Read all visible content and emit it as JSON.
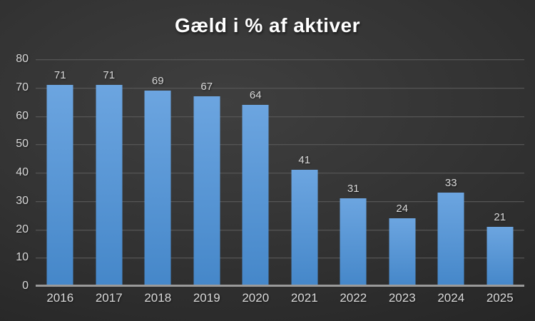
{
  "title": "Gæld i % af aktiver",
  "chart_data": {
    "type": "bar",
    "title": "Gæld i % af aktiver",
    "categories": [
      "2016",
      "2017",
      "2018",
      "2019",
      "2020",
      "2021",
      "2022",
      "2023",
      "2024",
      "2025"
    ],
    "values": [
      71,
      71,
      69,
      67,
      64,
      41,
      31,
      24,
      33,
      21
    ],
    "xlabel": "",
    "ylabel": "",
    "ylim": [
      0,
      80
    ],
    "yticks": [
      0,
      10,
      20,
      30,
      40,
      50,
      60,
      70,
      80
    ],
    "grid": true,
    "legend": false,
    "data_labels": true
  },
  "colors": {
    "bar_top": "#6ca5e0",
    "bar_bottom": "#4587c9",
    "grid": "#545454",
    "axis_line": "#9a9a9a",
    "text": "#d9d9d9",
    "title": "#ffffff",
    "bg_center": "#3f3f3f",
    "bg_edge": "#262626"
  }
}
